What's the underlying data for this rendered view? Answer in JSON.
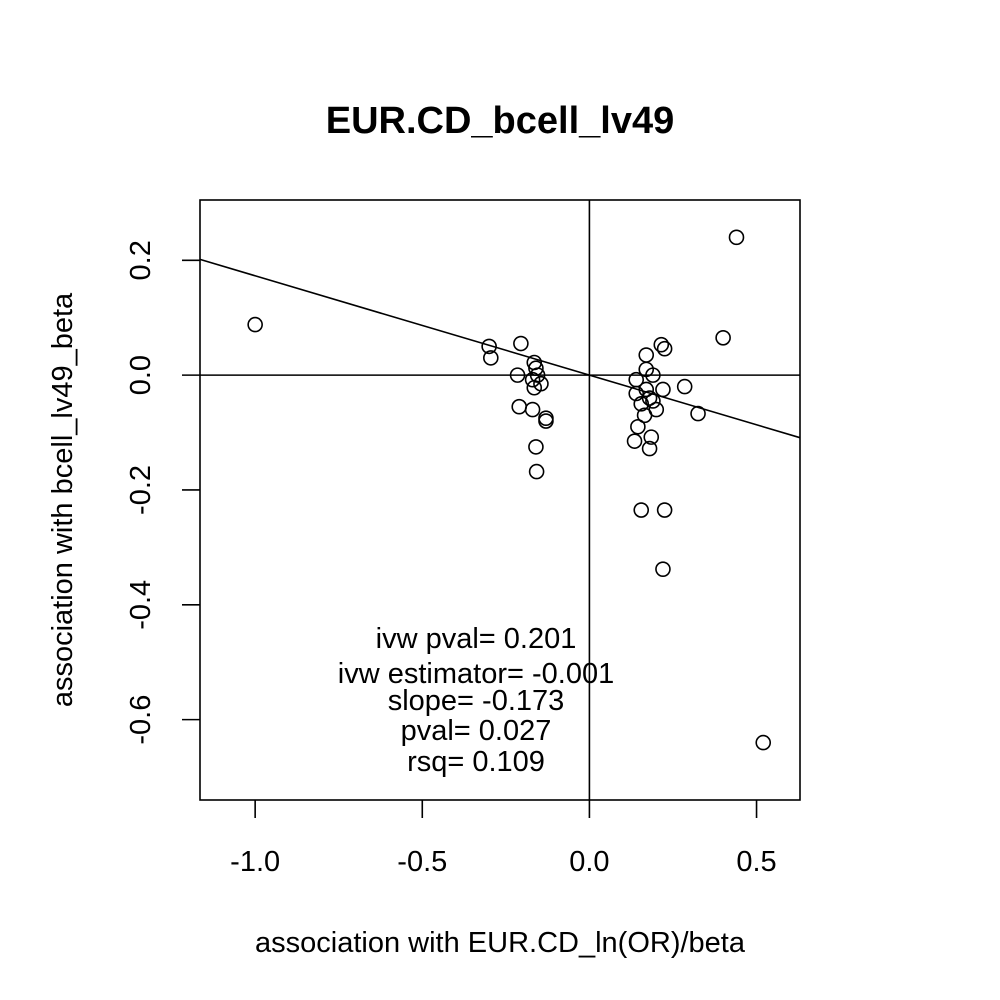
{
  "chart_data": {
    "type": "scatter",
    "title": "EUR.CD_bcell_lv49",
    "xlabel": "association with EUR.CD_ln(OR)/beta",
    "ylabel": "association with bcell_lv49_beta",
    "xlim": [
      -1.165,
      0.63
    ],
    "ylim": [
      -0.74,
      0.305
    ],
    "x_ticks": [
      -1.0,
      -0.5,
      0.0,
      0.5
    ],
    "x_tick_labels": [
      "-1.0",
      "-0.5",
      "0.0",
      "0.5"
    ],
    "y_ticks": [
      0.2,
      0.0,
      -0.2,
      -0.4,
      -0.6
    ],
    "y_tick_labels": [
      "0.2",
      "0.0",
      "-0.2",
      "-0.4",
      "-0.6"
    ],
    "grid": false,
    "reference_lines": {
      "x": 0,
      "y": 0
    },
    "fit_line": {
      "intercept": 0.0,
      "slope": -0.173
    },
    "annotations": [
      "ivw pval= 0.201",
      "ivw estimator= -0.001",
      "slope= -0.173",
      "pval= 0.027",
      "rsq= 0.109"
    ],
    "points": [
      {
        "x": -1.0,
        "y": 0.088
      },
      {
        "x": -0.3,
        "y": 0.05
      },
      {
        "x": -0.295,
        "y": 0.03
      },
      {
        "x": -0.205,
        "y": 0.055
      },
      {
        "x": -0.215,
        "y": 0.0
      },
      {
        "x": -0.21,
        "y": -0.055
      },
      {
        "x": -0.165,
        "y": 0.022
      },
      {
        "x": -0.16,
        "y": 0.012
      },
      {
        "x": -0.155,
        "y": 0.0
      },
      {
        "x": -0.17,
        "y": -0.008
      },
      {
        "x": -0.145,
        "y": -0.015
      },
      {
        "x": -0.165,
        "y": -0.022
      },
      {
        "x": -0.17,
        "y": -0.06
      },
      {
        "x": -0.13,
        "y": -0.075
      },
      {
        "x": -0.13,
        "y": -0.08
      },
      {
        "x": -0.16,
        "y": -0.125
      },
      {
        "x": -0.158,
        "y": -0.168
      },
      {
        "x": 0.17,
        "y": 0.035
      },
      {
        "x": 0.17,
        "y": 0.01
      },
      {
        "x": 0.19,
        "y": 0.0
      },
      {
        "x": 0.14,
        "y": -0.008
      },
      {
        "x": 0.215,
        "y": 0.053
      },
      {
        "x": 0.225,
        "y": 0.046
      },
      {
        "x": 0.4,
        "y": 0.065
      },
      {
        "x": 0.44,
        "y": 0.24
      },
      {
        "x": 0.285,
        "y": -0.02
      },
      {
        "x": 0.22,
        "y": -0.025
      },
      {
        "x": 0.17,
        "y": -0.025
      },
      {
        "x": 0.14,
        "y": -0.032
      },
      {
        "x": 0.18,
        "y": -0.04
      },
      {
        "x": 0.19,
        "y": -0.045
      },
      {
        "x": 0.155,
        "y": -0.05
      },
      {
        "x": 0.2,
        "y": -0.06
      },
      {
        "x": 0.325,
        "y": -0.067
      },
      {
        "x": 0.165,
        "y": -0.07
      },
      {
        "x": 0.145,
        "y": -0.09
      },
      {
        "x": 0.185,
        "y": -0.108
      },
      {
        "x": 0.135,
        "y": -0.115
      },
      {
        "x": 0.18,
        "y": -0.128
      },
      {
        "x": 0.155,
        "y": -0.235
      },
      {
        "x": 0.225,
        "y": -0.235
      },
      {
        "x": 0.22,
        "y": -0.338
      },
      {
        "x": 0.52,
        "y": -0.64
      }
    ]
  }
}
